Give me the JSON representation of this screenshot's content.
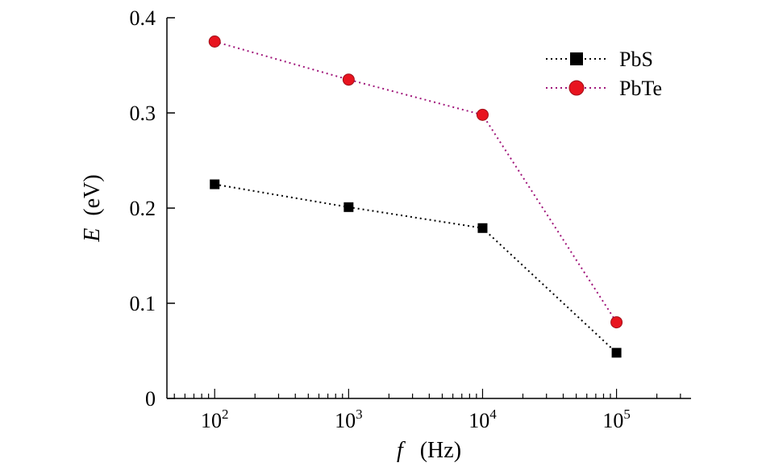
{
  "chart_data": {
    "type": "line",
    "x_scale": "log",
    "x": [
      100,
      1000,
      10000,
      100000
    ],
    "x_tick_labels": [
      {
        "base": "10",
        "exp": "2"
      },
      {
        "base": "10",
        "exp": "3"
      },
      {
        "base": "10",
        "exp": "4"
      },
      {
        "base": "10",
        "exp": "5"
      }
    ],
    "xlim": [
      44,
      360000
    ],
    "ylim": [
      0,
      0.4
    ],
    "y_ticks": [
      "0",
      "0.1",
      "0.2",
      "0.3",
      "0.4"
    ],
    "xlabel": {
      "symbol": "f",
      "unit": "(Hz)"
    },
    "ylabel": {
      "symbol": "E",
      "unit": "(eV)"
    },
    "grid": false,
    "legend_position": "top-right",
    "series": [
      {
        "name": "PbS",
        "values": [
          0.225,
          0.201,
          0.179,
          0.048
        ],
        "marker": "square",
        "color": "#000000",
        "line_color": "#000000",
        "line_style": "dotted"
      },
      {
        "name": "PbTe",
        "values": [
          0.375,
          0.335,
          0.298,
          0.08
        ],
        "marker": "circle",
        "color": "#e8141f",
        "line_color": "#a0157a",
        "line_style": "dotted"
      }
    ]
  }
}
